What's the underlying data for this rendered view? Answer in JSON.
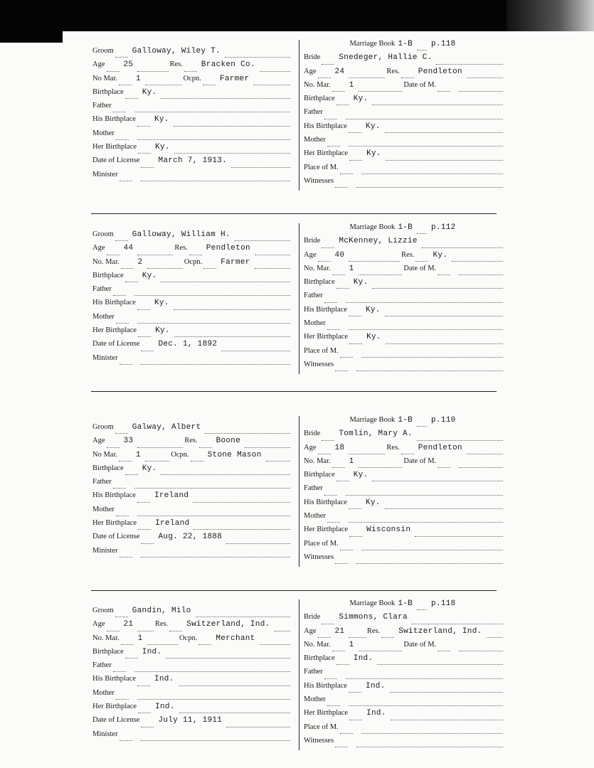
{
  "records": [
    {
      "groom": [
        [
          {
            "label": "Groom",
            "value": "Galloway, Wiley T."
          }
        ],
        [
          {
            "label": "Age",
            "value": "25"
          },
          {
            "label": "Res.",
            "value": "Bracken Co."
          }
        ],
        [
          {
            "label": "No Mar.",
            "value": "1"
          },
          {
            "label": "Ocpn.",
            "value": "Farmer"
          }
        ],
        [
          {
            "label": "Birthplace",
            "value": "Ky."
          }
        ],
        [
          {
            "label": "Father",
            "value": ""
          }
        ],
        [
          {
            "label": "His Birthplace",
            "value": "Ky."
          }
        ],
        [
          {
            "label": "Mother",
            "value": ""
          }
        ],
        [
          {
            "label": "Her Birthplace",
            "value": "Ky."
          }
        ],
        [
          {
            "label": "Date of License",
            "value": "March 7, 1913."
          }
        ],
        [
          {
            "label": "Minister",
            "value": ""
          }
        ]
      ],
      "book": {
        "label": "Marriage Book",
        "book": "1-B",
        "page": "p.118"
      },
      "bride": [
        [
          {
            "label": "Bride",
            "value": "Snedeger, Hallie C."
          }
        ],
        [
          {
            "label": "Age",
            "value": "24"
          },
          {
            "label": "Res.",
            "value": "Pendleton"
          }
        ],
        [
          {
            "label": "No. Mar.",
            "value": "1"
          },
          {
            "label": "Date of M.",
            "value": ""
          }
        ],
        [
          {
            "label": "Birthplace",
            "value": "Ky."
          }
        ],
        [
          {
            "label": "Father",
            "value": ""
          }
        ],
        [
          {
            "label": "His Birthplace",
            "value": "Ky."
          }
        ],
        [
          {
            "label": "Mother",
            "value": ""
          }
        ],
        [
          {
            "label": "Her Birthplace",
            "value": "Ky."
          }
        ],
        [
          {
            "label": "Place of M.",
            "value": ""
          }
        ],
        [
          {
            "label": "Witnesses",
            "value": ""
          }
        ]
      ]
    },
    {
      "groom": [
        [
          {
            "label": "Groom",
            "value": "Galloway, William H."
          }
        ],
        [
          {
            "label": "Age",
            "value": "44"
          },
          {
            "label": "Res.",
            "value": "Pendleton"
          }
        ],
        [
          {
            "label": "No. Mar.",
            "value": "2"
          },
          {
            "label": "Ocpn.",
            "value": "Farmer"
          }
        ],
        [
          {
            "label": "Birthplace",
            "value": "Ky."
          }
        ],
        [
          {
            "label": "Father",
            "value": ""
          }
        ],
        [
          {
            "label": "His Birthplace",
            "value": "Ky."
          }
        ],
        [
          {
            "label": "Mother",
            "value": ""
          }
        ],
        [
          {
            "label": "Her Birthplace",
            "value": "Ky."
          }
        ],
        [
          {
            "label": "Date of License",
            "value": "Dec. 1, 1892"
          }
        ],
        [
          {
            "label": "Minister",
            "value": ""
          }
        ]
      ],
      "book": {
        "label": "Marriage Book",
        "book": "1-B",
        "page": "p.112"
      },
      "bride": [
        [
          {
            "label": "Bride",
            "value": "McKenney, Lizzie"
          }
        ],
        [
          {
            "label": "Age",
            "value": "40"
          },
          {
            "label": "Res.",
            "value": "Ky."
          }
        ],
        [
          {
            "label": "No. Mar.",
            "value": "1"
          },
          {
            "label": "Date of M.",
            "value": ""
          }
        ],
        [
          {
            "label": "Birthplace",
            "value": "Ky."
          }
        ],
        [
          {
            "label": "Father",
            "value": ""
          }
        ],
        [
          {
            "label": "His Birthplace",
            "value": "Ky."
          }
        ],
        [
          {
            "label": "Mother",
            "value": ""
          }
        ],
        [
          {
            "label": "Her Birthplace",
            "value": "Ky."
          }
        ],
        [
          {
            "label": "Place of M.",
            "value": ""
          }
        ],
        [
          {
            "label": "Witnesses",
            "value": ""
          }
        ]
      ]
    },
    {
      "groom": [
        [
          {
            "label": "Groom",
            "value": "Galway, Albert"
          }
        ],
        [
          {
            "label": "Age",
            "value": "33"
          },
          {
            "label": "Res.",
            "value": "Boone"
          }
        ],
        [
          {
            "label": "No Mar.",
            "value": "1"
          },
          {
            "label": "Ocpn.",
            "value": "Stone Mason"
          }
        ],
        [
          {
            "label": "Birthplace",
            "value": "Ky."
          }
        ],
        [
          {
            "label": "Father",
            "value": ""
          }
        ],
        [
          {
            "label": "His Birthplace",
            "value": "Ireland"
          }
        ],
        [
          {
            "label": "Mother",
            "value": ""
          }
        ],
        [
          {
            "label": "Her Birthplace",
            "value": "Ireland"
          }
        ],
        [
          {
            "label": "Date of License",
            "value": "Aug. 22, 1888"
          }
        ],
        [
          {
            "label": "Minister",
            "value": ""
          }
        ]
      ],
      "book": {
        "label": "Marriage Book",
        "book": "1-B",
        "page": "p.110"
      },
      "bride": [
        [
          {
            "label": "Bride",
            "value": "Tomlin, Mary A."
          }
        ],
        [
          {
            "label": "Age",
            "value": "18"
          },
          {
            "label": "Res.",
            "value": "Pendleton"
          }
        ],
        [
          {
            "label": "No. Mar.",
            "value": "1"
          },
          {
            "label": "Date of M.",
            "value": ""
          }
        ],
        [
          {
            "label": "Birthplace",
            "value": "Ky."
          }
        ],
        [
          {
            "label": "Father",
            "value": ""
          }
        ],
        [
          {
            "label": "His Birthplace",
            "value": "Ky."
          }
        ],
        [
          {
            "label": "Mother",
            "value": ""
          }
        ],
        [
          {
            "label": "Her Birthplace",
            "value": "Wisconsin"
          }
        ],
        [
          {
            "label": "Place of M.",
            "value": ""
          }
        ],
        [
          {
            "label": "Witnesses",
            "value": ""
          }
        ]
      ]
    },
    {
      "groom": [
        [
          {
            "label": "Groom",
            "value": "Gandin, Milo"
          }
        ],
        [
          {
            "label": "Age",
            "value": "21"
          },
          {
            "label": "Res.",
            "value": "Switzerland, Ind."
          }
        ],
        [
          {
            "label": "No. Mar.",
            "value": "1"
          },
          {
            "label": "Ocpn.",
            "value": "Merchant"
          }
        ],
        [
          {
            "label": "Birthplace",
            "value": "Ind."
          }
        ],
        [
          {
            "label": "Father",
            "value": ""
          }
        ],
        [
          {
            "label": "His Birthplace",
            "value": "Ind."
          }
        ],
        [
          {
            "label": "Mother",
            "value": ""
          }
        ],
        [
          {
            "label": "Her Birthplace",
            "value": "Ind."
          }
        ],
        [
          {
            "label": "Date of License",
            "value": "July 11, 1911"
          }
        ],
        [
          {
            "label": "Minister",
            "value": ""
          }
        ]
      ],
      "book": {
        "label": "Marriage Book",
        "book": "1-B",
        "page": "p.118"
      },
      "bride": [
        [
          {
            "label": "Bride",
            "value": "Simmons, Clara"
          }
        ],
        [
          {
            "label": "Age",
            "value": "21"
          },
          {
            "label": "Res.",
            "value": "Switzerland, Ind."
          }
        ],
        [
          {
            "label": "No. Mar.",
            "value": "1"
          },
          {
            "label": "Date of M.",
            "value": ""
          }
        ],
        [
          {
            "label": "Birthplace",
            "value": "Ind."
          }
        ],
        [
          {
            "label": "Father",
            "value": ""
          }
        ],
        [
          {
            "label": "His Birthplace",
            "value": "Ind."
          }
        ],
        [
          {
            "label": "Mother",
            "value": ""
          }
        ],
        [
          {
            "label": "Her Birthplace",
            "value": "Ind."
          }
        ],
        [
          {
            "label": "Place of M.",
            "value": ""
          }
        ],
        [
          {
            "label": "Witnesses",
            "value": ""
          }
        ]
      ]
    }
  ]
}
